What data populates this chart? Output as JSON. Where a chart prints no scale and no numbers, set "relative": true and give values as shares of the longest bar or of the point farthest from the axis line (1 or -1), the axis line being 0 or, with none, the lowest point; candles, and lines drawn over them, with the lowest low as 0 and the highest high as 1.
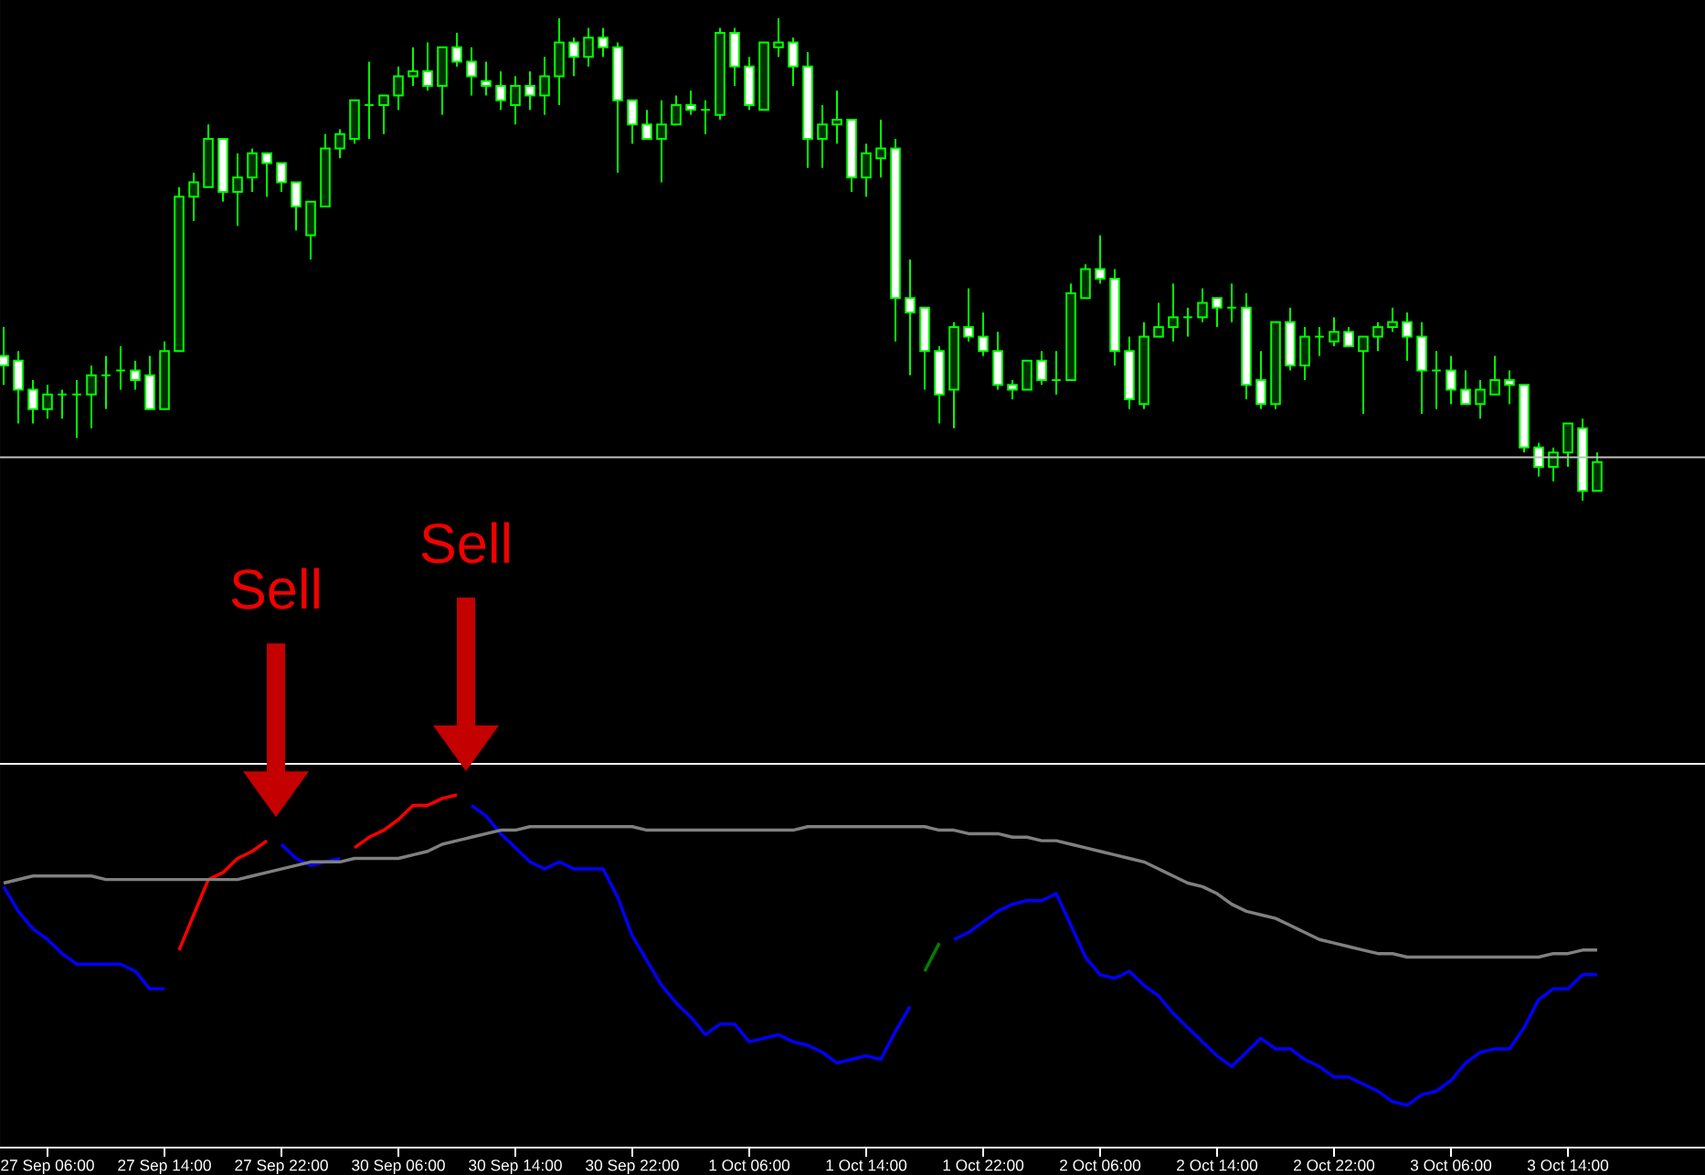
{
  "chart_data": [
    {
      "type": "candlestick",
      "relative": true,
      "color": "#00ff00",
      "tick_labels": false,
      "categories": [
        null,
        null,
        null,
        null,
        null,
        null,
        null,
        null,
        null,
        null,
        null,
        null,
        null,
        null,
        null,
        null,
        null,
        null,
        null,
        null,
        null,
        null,
        null,
        null,
        null,
        null,
        null,
        null,
        null,
        null,
        null,
        null,
        null,
        null,
        null,
        null,
        null,
        null,
        null,
        null,
        null,
        null,
        null,
        null,
        null,
        null,
        null,
        null,
        null,
        null,
        null,
        null,
        null,
        null,
        null,
        null,
        null,
        null,
        null,
        null,
        null,
        null,
        null,
        null,
        null,
        null,
        null,
        null,
        null,
        null,
        null,
        null,
        null,
        null,
        null,
        null,
        null,
        null,
        null,
        null,
        null,
        null,
        null,
        null,
        null,
        null,
        null,
        null,
        null,
        null,
        null,
        null,
        null,
        null,
        null,
        null,
        null,
        null,
        null,
        null,
        null,
        null,
        null,
        null,
        null,
        null,
        null,
        null,
        null,
        null
      ],
      "ohlc": [
        [
          0.3,
          0.36,
          0.24,
          0.28
        ],
        [
          0.29,
          0.31,
          0.16,
          0.23
        ],
        [
          0.23,
          0.25,
          0.16,
          0.19
        ],
        [
          0.19,
          0.24,
          0.17,
          0.22
        ],
        [
          0.22,
          0.23,
          0.17,
          0.22
        ],
        [
          0.22,
          0.25,
          0.13,
          0.22
        ],
        [
          0.22,
          0.28,
          0.15,
          0.26
        ],
        [
          0.26,
          0.3,
          0.19,
          0.26
        ],
        [
          0.27,
          0.32,
          0.23,
          0.27
        ],
        [
          0.27,
          0.29,
          0.23,
          0.25
        ],
        [
          0.26,
          0.3,
          0.19,
          0.19
        ],
        [
          0.19,
          0.33,
          0.19,
          0.31
        ],
        [
          0.31,
          0.65,
          0.31,
          0.63
        ],
        [
          0.63,
          0.68,
          0.58,
          0.66
        ],
        [
          0.65,
          0.78,
          0.65,
          0.75
        ],
        [
          0.75,
          0.75,
          0.62,
          0.64
        ],
        [
          0.64,
          0.72,
          0.57,
          0.67
        ],
        [
          0.67,
          0.73,
          0.64,
          0.72
        ],
        [
          0.72,
          0.72,
          0.63,
          0.7
        ],
        [
          0.7,
          0.7,
          0.64,
          0.66
        ],
        [
          0.66,
          0.66,
          0.56,
          0.61
        ],
        [
          0.55,
          0.62,
          0.5,
          0.62
        ],
        [
          0.61,
          0.76,
          0.61,
          0.73
        ],
        [
          0.73,
          0.77,
          0.71,
          0.76
        ],
        [
          0.75,
          0.83,
          0.74,
          0.83
        ],
        [
          0.82,
          0.91,
          0.75,
          0.82
        ],
        [
          0.82,
          0.84,
          0.76,
          0.84
        ],
        [
          0.84,
          0.9,
          0.81,
          0.88
        ],
        [
          0.88,
          0.94,
          0.86,
          0.89
        ],
        [
          0.89,
          0.95,
          0.85,
          0.86
        ],
        [
          0.86,
          0.94,
          0.8,
          0.94
        ],
        [
          0.94,
          0.97,
          0.9,
          0.91
        ],
        [
          0.91,
          0.94,
          0.84,
          0.88
        ],
        [
          0.87,
          0.91,
          0.84,
          0.86
        ],
        [
          0.86,
          0.89,
          0.81,
          0.83
        ],
        [
          0.82,
          0.88,
          0.78,
          0.86
        ],
        [
          0.86,
          0.89,
          0.81,
          0.84
        ],
        [
          0.84,
          0.92,
          0.8,
          0.88
        ],
        [
          0.88,
          1.0,
          0.82,
          0.95
        ],
        [
          0.95,
          0.96,
          0.88,
          0.92
        ],
        [
          0.92,
          0.98,
          0.9,
          0.96
        ],
        [
          0.96,
          0.98,
          0.92,
          0.94
        ],
        [
          0.94,
          0.95,
          0.68,
          0.83
        ],
        [
          0.83,
          0.83,
          0.74,
          0.78
        ],
        [
          0.78,
          0.81,
          0.75,
          0.75
        ],
        [
          0.75,
          0.83,
          0.66,
          0.78
        ],
        [
          0.78,
          0.84,
          0.78,
          0.82
        ],
        [
          0.82,
          0.85,
          0.8,
          0.81
        ],
        [
          0.81,
          0.83,
          0.76,
          0.81
        ],
        [
          0.8,
          0.98,
          0.79,
          0.97
        ],
        [
          0.97,
          0.98,
          0.86,
          0.9
        ],
        [
          0.9,
          0.92,
          0.81,
          0.82
        ],
        [
          0.81,
          0.95,
          0.81,
          0.95
        ],
        [
          0.94,
          1.0,
          0.92,
          0.95
        ],
        [
          0.95,
          0.96,
          0.86,
          0.9
        ],
        [
          0.9,
          0.93,
          0.69,
          0.75
        ],
        [
          0.75,
          0.82,
          0.69,
          0.78
        ],
        [
          0.78,
          0.85,
          0.74,
          0.79
        ],
        [
          0.79,
          0.79,
          0.64,
          0.67
        ],
        [
          0.67,
          0.74,
          0.63,
          0.72
        ],
        [
          0.71,
          0.79,
          0.67,
          0.73
        ],
        [
          0.73,
          0.75,
          0.33,
          0.42
        ],
        [
          0.42,
          0.5,
          0.26,
          0.39
        ],
        [
          0.4,
          0.4,
          0.23,
          0.31
        ],
        [
          0.31,
          0.32,
          0.16,
          0.22
        ],
        [
          0.23,
          0.37,
          0.15,
          0.36
        ],
        [
          0.36,
          0.44,
          0.33,
          0.34
        ],
        [
          0.34,
          0.39,
          0.3,
          0.31
        ],
        [
          0.31,
          0.35,
          0.23,
          0.24
        ],
        [
          0.24,
          0.25,
          0.21,
          0.23
        ],
        [
          0.23,
          0.29,
          0.23,
          0.29
        ],
        [
          0.29,
          0.31,
          0.24,
          0.25
        ],
        [
          0.25,
          0.31,
          0.22,
          0.25
        ],
        [
          0.25,
          0.45,
          0.25,
          0.43
        ],
        [
          0.42,
          0.49,
          0.42,
          0.48
        ],
        [
          0.48,
          0.55,
          0.45,
          0.46
        ],
        [
          0.46,
          0.48,
          0.28,
          0.31
        ],
        [
          0.31,
          0.34,
          0.19,
          0.21
        ],
        [
          0.2,
          0.37,
          0.19,
          0.34
        ],
        [
          0.34,
          0.41,
          0.34,
          0.36
        ],
        [
          0.36,
          0.45,
          0.33,
          0.38
        ],
        [
          0.38,
          0.4,
          0.34,
          0.38
        ],
        [
          0.38,
          0.44,
          0.37,
          0.41
        ],
        [
          0.42,
          0.42,
          0.36,
          0.4
        ],
        [
          0.4,
          0.45,
          0.37,
          0.4
        ],
        [
          0.4,
          0.43,
          0.21,
          0.24
        ],
        [
          0.25,
          0.31,
          0.19,
          0.2
        ],
        [
          0.2,
          0.37,
          0.19,
          0.37
        ],
        [
          0.37,
          0.4,
          0.27,
          0.28
        ],
        [
          0.28,
          0.36,
          0.25,
          0.34
        ],
        [
          0.34,
          0.36,
          0.3,
          0.34
        ],
        [
          0.33,
          0.38,
          0.32,
          0.35
        ],
        [
          0.35,
          0.36,
          0.32,
          0.32
        ],
        [
          0.31,
          0.34,
          0.18,
          0.34
        ],
        [
          0.34,
          0.37,
          0.31,
          0.36
        ],
        [
          0.36,
          0.4,
          0.35,
          0.37
        ],
        [
          0.37,
          0.39,
          0.29,
          0.34
        ],
        [
          0.34,
          0.37,
          0.18,
          0.27
        ],
        [
          0.27,
          0.31,
          0.19,
          0.27
        ],
        [
          0.27,
          0.3,
          0.2,
          0.23
        ],
        [
          0.23,
          0.27,
          0.2,
          0.2
        ],
        [
          0.2,
          0.25,
          0.17,
          0.23
        ],
        [
          0.22,
          0.3,
          0.22,
          0.25
        ],
        [
          0.25,
          0.27,
          0.2,
          0.24
        ],
        [
          0.24,
          0.24,
          0.1,
          0.11
        ],
        [
          0.11,
          0.12,
          0.05,
          0.07
        ],
        [
          0.07,
          0.11,
          0.04,
          0.1
        ],
        [
          0.1,
          0.16,
          0.07,
          0.16
        ],
        [
          0.15,
          0.17,
          0,
          0.02
        ],
        [
          0.02,
          0.1,
          0.02,
          0.08
        ]
      ],
      "ref_lines": [
        {
          "axis": "y",
          "value": 0.09,
          "color": "#c0c0c0"
        }
      ]
    },
    {
      "type": "line",
      "relative": true,
      "tick_labels": "x",
      "categories": [
        null,
        null,
        null,
        "27 Sep 06:00",
        null,
        null,
        null,
        null,
        null,
        null,
        null,
        "27 Sep 14:00",
        null,
        null,
        null,
        null,
        null,
        null,
        null,
        "27 Sep 22:00",
        null,
        null,
        null,
        null,
        null,
        null,
        null,
        "30 Sep 06:00",
        null,
        null,
        null,
        null,
        null,
        null,
        null,
        "30 Sep 14:00",
        null,
        null,
        null,
        null,
        null,
        null,
        null,
        "30 Sep 22:00",
        null,
        null,
        null,
        null,
        null,
        null,
        null,
        "1 Oct 06:00",
        null,
        null,
        null,
        null,
        null,
        null,
        null,
        "1 Oct 14:00",
        null,
        null,
        null,
        null,
        null,
        null,
        null,
        "1 Oct 22:00",
        null,
        null,
        null,
        null,
        null,
        null,
        null,
        "2 Oct 06:00",
        null,
        null,
        null,
        null,
        null,
        null,
        null,
        "2 Oct 14:00",
        null,
        null,
        null,
        null,
        null,
        null,
        null,
        "2 Oct 22:00",
        null,
        null,
        null,
        null,
        null,
        null,
        null,
        "3 Oct 06:00",
        null,
        null,
        null,
        null,
        null,
        null,
        null,
        "3 Oct 14:00",
        null,
        null
      ],
      "series": [
        {
          "color": "#0000ff",
          "values": [
            0.74,
            0.67,
            0.62,
            0.59,
            0.55,
            0.52,
            0.52,
            0.52,
            0.52,
            0.5,
            0.45,
            0.45,
            null,
            null,
            null,
            null,
            null,
            null,
            null,
            0.86,
            0.82,
            0.8,
            0.81,
            0.82,
            null,
            null,
            null,
            null,
            null,
            null,
            null,
            null,
            0.97,
            0.94,
            0.89,
            0.85,
            0.81,
            0.79,
            0.81,
            0.79,
            0.79,
            0.79,
            0.71,
            0.6,
            0.53,
            0.46,
            0.41,
            0.37,
            0.32,
            0.35,
            0.35,
            0.3,
            0.31,
            0.32,
            0.3,
            0.29,
            0.27,
            0.24,
            0.25,
            0.26,
            0.25,
            0.33,
            0.4,
            null,
            null,
            0.59,
            0.61,
            0.64,
            0.67,
            0.69,
            0.7,
            0.7,
            0.72,
            0.63,
            0.54,
            0.49,
            0.48,
            0.5,
            0.46,
            0.43,
            0.38,
            0.34,
            0.3,
            0.26,
            0.23,
            0.27,
            0.31,
            0.28,
            0.28,
            0.25,
            0.23,
            0.2,
            0.2,
            0.18,
            0.16,
            0.13,
            0.12,
            0.15,
            0.16,
            0.19,
            0.24,
            0.27,
            0.28,
            0.28,
            0.34,
            0.42,
            0.45,
            0.45,
            0.49,
            0.49
          ]
        },
        {
          "color": "#ff0000",
          "values": [
            null,
            null,
            null,
            null,
            null,
            null,
            null,
            null,
            null,
            null,
            null,
            null,
            0.56,
            0.66,
            0.76,
            0.78,
            0.82,
            0.84,
            0.87,
            null,
            null,
            null,
            null,
            null,
            0.85,
            0.88,
            0.9,
            0.93,
            0.97,
            0.97,
            0.99,
            1.0,
            null,
            null,
            null,
            null,
            null,
            null,
            null,
            null,
            null,
            null,
            null,
            null,
            null,
            null,
            null,
            null,
            null,
            null,
            null,
            null,
            null,
            null,
            null,
            null,
            null,
            null,
            null,
            null,
            null,
            null,
            null,
            null,
            null,
            null,
            null,
            null,
            null,
            null,
            null,
            null,
            null,
            null,
            null,
            null,
            null,
            null,
            null,
            null,
            null,
            null,
            null,
            null,
            null,
            null,
            null,
            null,
            null,
            null,
            null,
            null,
            null,
            null,
            null,
            null,
            null,
            null,
            null,
            null,
            null,
            null,
            null,
            null,
            null,
            null,
            null,
            null,
            null,
            null
          ]
        },
        {
          "color": "#008000",
          "values": [
            null,
            null,
            null,
            null,
            null,
            null,
            null,
            null,
            null,
            null,
            null,
            null,
            null,
            null,
            null,
            null,
            null,
            null,
            null,
            null,
            null,
            null,
            null,
            null,
            null,
            null,
            null,
            null,
            null,
            null,
            null,
            null,
            null,
            null,
            null,
            null,
            null,
            null,
            null,
            null,
            null,
            null,
            null,
            null,
            null,
            null,
            null,
            null,
            null,
            null,
            null,
            null,
            null,
            null,
            null,
            null,
            null,
            null,
            null,
            null,
            null,
            null,
            null,
            0.5,
            0.58,
            null,
            null,
            null,
            null,
            null,
            null,
            null,
            null,
            null,
            null,
            null,
            null,
            null,
            null,
            null,
            null,
            null,
            null,
            null,
            null,
            null,
            null,
            null,
            null,
            null,
            null,
            null,
            null,
            null,
            null,
            null,
            null,
            null,
            null,
            null,
            null,
            null,
            null,
            null,
            null,
            null,
            null,
            null,
            null,
            null
          ]
        },
        {
          "color": "#808080",
          "values": [
            0.75,
            0.76,
            0.77,
            0.77,
            0.77,
            0.77,
            0.77,
            0.76,
            0.76,
            0.76,
            0.76,
            0.76,
            0.76,
            0.76,
            0.76,
            0.76,
            0.76,
            0.77,
            0.78,
            0.79,
            0.8,
            0.81,
            0.81,
            0.81,
            0.82,
            0.82,
            0.82,
            0.82,
            0.83,
            0.84,
            0.86,
            0.87,
            0.88,
            0.89,
            0.9,
            0.9,
            0.91,
            0.91,
            0.91,
            0.91,
            0.91,
            0.91,
            0.91,
            0.91,
            0.9,
            0.9,
            0.9,
            0.9,
            0.9,
            0.9,
            0.9,
            0.9,
            0.9,
            0.9,
            0.9,
            0.91,
            0.91,
            0.91,
            0.91,
            0.91,
            0.91,
            0.91,
            0.91,
            0.91,
            0.9,
            0.9,
            0.89,
            0.89,
            0.89,
            0.88,
            0.88,
            0.87,
            0.87,
            0.86,
            0.85,
            0.84,
            0.83,
            0.82,
            0.81,
            0.79,
            0.77,
            0.75,
            0.74,
            0.72,
            0.69,
            0.67,
            0.66,
            0.65,
            0.63,
            0.61,
            0.59,
            0.58,
            0.57,
            0.56,
            0.55,
            0.55,
            0.54,
            0.54,
            0.54,
            0.54,
            0.54,
            0.54,
            0.54,
            0.54,
            0.54,
            0.54,
            0.55,
            0.55,
            0.56,
            0.56
          ]
        }
      ],
      "annotations": [
        "Sell",
        "Sell"
      ]
    }
  ]
}
